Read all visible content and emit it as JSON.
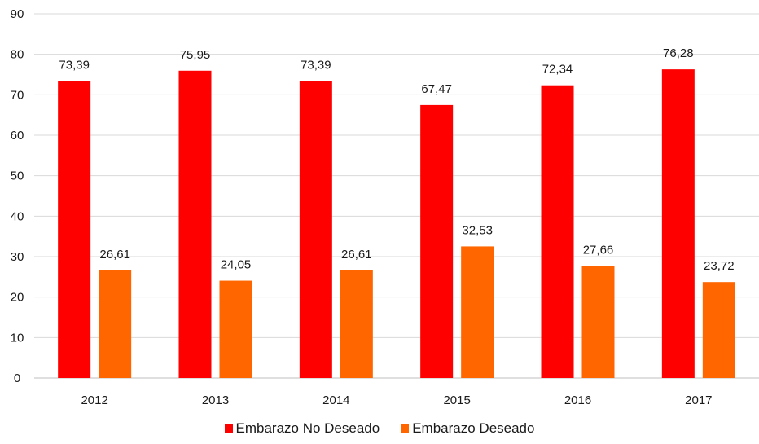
{
  "chart_data": {
    "type": "bar",
    "categories": [
      "2012",
      "2013",
      "2014",
      "2015",
      "2016",
      "2017"
    ],
    "series": [
      {
        "name": "Embarazo No Deseado",
        "color": "#ff0000",
        "values": [
          73.39,
          75.95,
          73.39,
          67.47,
          72.34,
          76.28
        ],
        "labels": [
          "73,39",
          "75,95",
          "73,39",
          "67,47",
          "72,34",
          "76,28"
        ]
      },
      {
        "name": "Embarazo Deseado",
        "color": "#ff6600",
        "values": [
          26.61,
          24.05,
          26.61,
          32.53,
          27.66,
          23.72
        ],
        "labels": [
          "26,61",
          "24,05",
          "26,61",
          "32,53",
          "27,66",
          "23,72"
        ]
      }
    ],
    "yticks": [
      "0",
      "10",
      "20",
      "30",
      "40",
      "50",
      "60",
      "70",
      "80",
      "90"
    ],
    "ylim": [
      0,
      90
    ],
    "grid": true,
    "legend_position": "bottom",
    "title": "",
    "xlabel": "",
    "ylabel": ""
  }
}
